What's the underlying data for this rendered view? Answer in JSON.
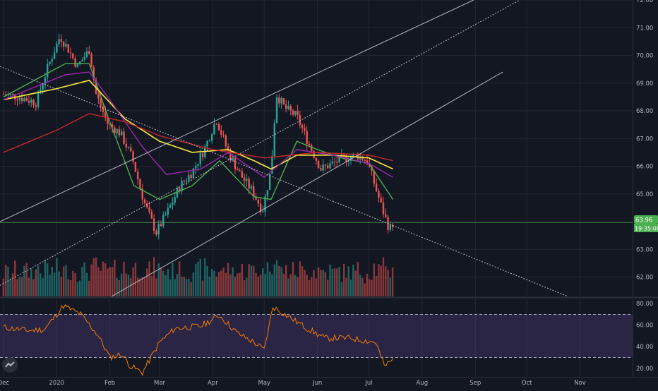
{
  "chart_data": [
    {
      "type": "candlestick",
      "panel": "price",
      "ylim": [
        61.3,
        72.0
      ],
      "y_ticks": [
        "62.00",
        "63.00",
        "64.00",
        "65.00",
        "66.00",
        "67.00",
        "68.00",
        "69.00",
        "70.00",
        "71.00",
        "72.00"
      ],
      "x_ticks": [
        "Dec",
        "2020",
        "Feb",
        "Mar",
        "Apr",
        "May",
        "Jun",
        "Jul",
        "Aug",
        "Sep",
        "Oct",
        "Nov"
      ],
      "last_price_label": "63.96",
      "countdown_label": "19:35:08",
      "colors": {
        "up": "#26a69a",
        "down": "#ef5350",
        "background": "#131722",
        "grid": "#242733",
        "text": "#b2b5be",
        "ma_fast": "#4caf50",
        "ma_mid": "#ffeb3b",
        "ma_purple": "#9c27b0",
        "ma_slow": "#c62828",
        "lines": "#d1d4dc"
      },
      "series": [
        {
          "name": "",
          "kind": "price",
          "x": [
            "2019-12-01",
            "2019-12-10",
            "2019-12-20",
            "2019-12-27",
            "2020-01-03",
            "2020-01-08",
            "2020-01-13",
            "2020-01-20",
            "2020-01-24",
            "2020-01-31",
            "2020-02-07",
            "2020-02-14",
            "2020-02-21",
            "2020-02-28",
            "2020-03-06",
            "2020-03-13",
            "2020-03-20",
            "2020-03-27",
            "2020-04-03",
            "2020-04-10",
            "2020-04-17",
            "2020-04-24",
            "2020-04-30",
            "2020-05-05",
            "2020-05-08",
            "2020-05-13",
            "2020-05-20",
            "2020-05-27",
            "2020-06-03",
            "2020-06-10",
            "2020-06-17",
            "2020-06-24",
            "2020-06-30",
            "2020-07-03",
            "2020-07-08",
            "2020-07-13",
            "2020-07-15"
          ],
          "values": [
            68.6,
            68.5,
            68.3,
            69.6,
            70.7,
            70.2,
            69.6,
            70.2,
            68.6,
            67.5,
            67.2,
            66.3,
            64.7,
            63.6,
            64.4,
            65.3,
            65.8,
            66.6,
            67.7,
            66.5,
            65.7,
            65.1,
            64.4,
            65.9,
            68.6,
            68.1,
            67.8,
            66.8,
            65.9,
            66.1,
            66.3,
            66.4,
            66.2,
            65.6,
            64.6,
            63.7,
            63.96
          ]
        },
        {
          "name": "",
          "kind": "ma_fast",
          "x": [
            "2019-12-01",
            "2020-01-06",
            "2020-01-20",
            "2020-02-01",
            "2020-02-15",
            "2020-03-01",
            "2020-03-20",
            "2020-04-05",
            "2020-04-25",
            "2020-05-05",
            "2020-05-20",
            "2020-06-01",
            "2020-06-15",
            "2020-07-01",
            "2020-07-15"
          ],
          "values": [
            68.5,
            69.7,
            69.7,
            67.6,
            65.3,
            64.8,
            65.3,
            66.2,
            64.9,
            64.8,
            66.9,
            66.6,
            66.3,
            66.1,
            64.8
          ]
        },
        {
          "name": "",
          "kind": "ma_mid",
          "x": [
            "2019-12-01",
            "2020-01-01",
            "2020-01-20",
            "2020-02-10",
            "2020-03-01",
            "2020-03-20",
            "2020-04-10",
            "2020-04-25",
            "2020-05-05",
            "2020-05-20",
            "2020-06-10",
            "2020-07-01",
            "2020-07-15"
          ],
          "values": [
            68.4,
            68.8,
            69.1,
            67.7,
            66.9,
            66.5,
            66.6,
            66.2,
            65.9,
            66.4,
            66.4,
            66.3,
            65.9
          ]
        },
        {
          "name": "",
          "kind": "ma_purple",
          "x": [
            "2019-12-01",
            "2020-01-06",
            "2020-01-20",
            "2020-02-01",
            "2020-02-20",
            "2020-03-05",
            "2020-03-25",
            "2020-04-10",
            "2020-05-01",
            "2020-05-20",
            "2020-06-10",
            "2020-07-01",
            "2020-07-15"
          ],
          "values": [
            68.4,
            69.3,
            69.4,
            68.4,
            66.7,
            65.7,
            65.9,
            66.5,
            65.6,
            66.6,
            66.4,
            66.1,
            65.6
          ]
        },
        {
          "name": "",
          "kind": "ma_slow",
          "x": [
            "2019-12-01",
            "2020-01-01",
            "2020-01-20",
            "2020-02-10",
            "2020-03-01",
            "2020-04-01",
            "2020-05-01",
            "2020-06-01",
            "2020-07-01",
            "2020-07-15"
          ],
          "values": [
            66.5,
            67.3,
            67.9,
            67.6,
            67.1,
            66.6,
            66.3,
            66.5,
            66.4,
            66.2
          ]
        }
      ],
      "trend_lines": [
        {
          "from": [
            "2019-11-29",
            64.0
          ],
          "to": [
            "2020-08-31",
            72.0
          ]
        },
        {
          "from": [
            "2019-11-29",
            61.7
          ],
          "to": [
            "2020-09-27",
            72.0
          ]
        },
        {
          "from": [
            "2020-02-02",
            61.3
          ],
          "to": [
            "2020-09-17",
            69.4
          ]
        },
        {
          "from": [
            "2019-11-29",
            69.6
          ],
          "to": [
            "2020-10-25",
            61.3
          ]
        }
      ],
      "volume_bars": 170,
      "grid": true
    },
    {
      "type": "line",
      "panel": "rsi",
      "ylim": [
        12.0,
        84.0
      ],
      "y_ticks": [
        "20.00",
        "40.00",
        "60.00",
        "80.00"
      ],
      "band": [
        30,
        70
      ],
      "series": [
        {
          "name": "",
          "x": [
            "2019-12-01",
            "2019-12-15",
            "2019-12-25",
            "2020-01-01",
            "2020-01-05",
            "2020-01-15",
            "2020-01-25",
            "2020-02-01",
            "2020-02-08",
            "2020-02-13",
            "2020-02-20",
            "2020-03-01",
            "2020-03-10",
            "2020-03-25",
            "2020-04-05",
            "2020-04-15",
            "2020-04-25",
            "2020-05-01",
            "2020-05-06",
            "2020-05-15",
            "2020-05-25",
            "2020-06-05",
            "2020-06-20",
            "2020-07-05",
            "2020-07-10",
            "2020-07-15"
          ],
          "values": [
            58,
            55,
            56,
            70,
            78,
            70,
            51,
            30,
            33,
            22,
            16,
            44,
            57,
            59,
            69,
            53,
            44,
            37,
            77,
            68,
            58,
            48,
            48,
            44,
            22,
            28
          ]
        }
      ]
    }
  ]
}
